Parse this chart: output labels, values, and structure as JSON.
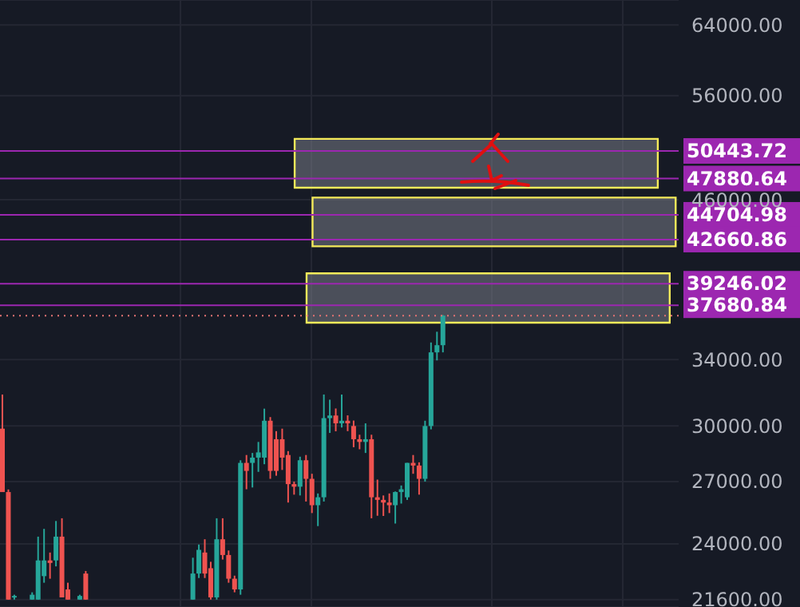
{
  "chart_data": {
    "type": "candlestick",
    "categories": [
      null,
      null,
      null,
      null,
      null,
      null,
      null,
      null,
      null,
      null,
      null,
      null,
      null,
      null,
      null,
      null,
      null,
      null,
      null,
      null,
      null,
      null,
      null,
      null,
      null,
      null,
      null,
      null,
      null,
      null,
      null,
      null,
      null,
      null,
      null,
      null,
      null,
      null,
      null,
      null,
      null,
      null,
      null,
      null,
      null,
      null,
      null,
      null,
      null,
      null,
      null,
      null,
      null,
      null,
      null,
      null,
      null,
      null,
      null,
      null,
      null,
      null,
      null,
      null,
      null,
      null,
      null,
      null,
      null,
      null,
      null,
      null,
      null,
      null,
      null,
      null,
      null,
      null,
      null,
      null,
      null,
      null,
      null,
      null,
      null,
      null,
      null,
      null,
      null,
      null,
      null,
      null,
      null,
      null,
      null,
      null,
      null,
      null,
      null,
      null,
      null,
      null,
      null,
      null,
      null,
      null,
      null,
      null,
      null,
      null,
      null,
      null,
      null,
      null
    ],
    "ohlc": [
      [
        29840,
        31830,
        26470,
        26470
      ],
      [
        26470,
        26600,
        21600,
        21600
      ],
      [
        21700,
        21800,
        21600,
        21750
      ],
      null,
      null,
      [
        21600,
        21900,
        21600,
        21800
      ],
      [
        21600,
        24330,
        21600,
        23260
      ],
      [
        22580,
        24690,
        22300,
        23260
      ],
      [
        23260,
        23610,
        22470,
        23150
      ],
      [
        23260,
        25060,
        23000,
        24330
      ],
      [
        24330,
        25190,
        21690,
        21690
      ],
      [
        22020,
        22300,
        21600,
        21600
      ],
      null,
      [
        21600,
        21800,
        21600,
        21750
      ],
      [
        22690,
        22800,
        21600,
        21600
      ],
      null,
      null,
      null,
      null,
      null,
      null,
      null,
      null,
      null,
      null,
      null,
      null,
      null,
      null,
      null,
      null,
      null,
      [
        21600,
        23380,
        21600,
        22690
      ],
      [
        22690,
        23970,
        22500,
        23730
      ],
      [
        23610,
        24210,
        22500,
        22690
      ],
      [
        22920,
        23200,
        21600,
        21690
      ],
      [
        21690,
        25190,
        21600,
        24210
      ],
      [
        24210,
        25190,
        23300,
        23500
      ],
      [
        23500,
        23700,
        22300,
        22470
      ],
      [
        22470,
        22600,
        21900,
        22020
      ],
      [
        22020,
        28110,
        21800,
        27970
      ],
      [
        27970,
        28390,
        26610,
        27550
      ],
      [
        27970,
        28500,
        26700,
        28250
      ],
      [
        28250,
        29100,
        27500,
        28530
      ],
      [
        28250,
        30990,
        27900,
        30290
      ],
      [
        30290,
        30500,
        27140,
        27550
      ],
      [
        29250,
        29700,
        27300,
        27550
      ],
      [
        29250,
        29840,
        27600,
        28250
      ],
      [
        28390,
        28600,
        25950,
        26870
      ],
      [
        26870,
        27000,
        26340,
        26740
      ],
      [
        26740,
        28300,
        26300,
        28110
      ],
      [
        28110,
        28390,
        26000,
        27140
      ],
      [
        27140,
        27400,
        25440,
        25820
      ],
      [
        25820,
        26400,
        24820,
        26210
      ],
      [
        26210,
        31830,
        26000,
        30440
      ],
      [
        30440,
        31520,
        29600,
        30590
      ],
      [
        30590,
        31000,
        29690,
        30140
      ],
      [
        30140,
        31830,
        29900,
        30290
      ],
      [
        30290,
        30600,
        29700,
        30140
      ],
      [
        29990,
        30300,
        28810,
        29250
      ],
      [
        29250,
        29500,
        28700,
        29100
      ],
      [
        29100,
        30140,
        28500,
        29250
      ],
      [
        29250,
        29500,
        25190,
        26210
      ],
      [
        26210,
        27100,
        25310,
        26080
      ],
      [
        26080,
        26300,
        25300,
        25950
      ],
      [
        25950,
        26400,
        25440,
        25820
      ],
      [
        25820,
        26500,
        24940,
        26470
      ],
      [
        26470,
        26800,
        25900,
        26610
      ],
      [
        26210,
        27970,
        26080,
        27970
      ],
      [
        27970,
        28390,
        27400,
        27830
      ],
      [
        27830,
        28000,
        26340,
        27140
      ],
      [
        27140,
        30290,
        27000,
        29990
      ],
      [
        29990,
        35120,
        29800,
        34470
      ],
      [
        34470,
        35840,
        33950,
        34940
      ],
      [
        34940,
        36990,
        34470,
        36950
      ],
      null,
      null,
      null,
      null,
      null,
      null,
      null,
      null,
      null,
      null,
      null,
      null,
      null,
      null,
      null,
      null,
      null,
      null,
      null,
      null,
      null,
      null,
      null,
      null,
      null,
      null,
      null,
      null,
      null,
      null,
      null,
      null,
      null,
      null,
      null,
      null,
      null,
      null,
      null
    ],
    "colors": [
      "#ef5350",
      "#ef5350",
      "#26a69a",
      null,
      null,
      "#26a69a",
      "#26a69a",
      "#26a69a",
      "#ef5350",
      "#26a69a",
      "#ef5350",
      "#ef5350",
      null,
      "#26a69a",
      "#ef5350",
      null,
      null,
      null,
      null,
      null,
      null,
      null,
      null,
      null,
      null,
      null,
      null,
      null,
      null,
      null,
      null,
      null,
      "#26a69a",
      "#26a69a",
      "#ef5350",
      "#ef5350",
      "#26a69a",
      "#ef5350",
      "#ef5350",
      "#ef5350",
      "#26a69a",
      "#ef5350",
      "#26a69a",
      "#26a69a",
      "#26a69a",
      "#ef5350",
      "#ef5350",
      "#ef5350",
      "#ef5350",
      "#ef5350",
      "#26a69a",
      "#ef5350",
      "#ef5350",
      "#26a69a",
      "#26a69a",
      "#26a69a",
      "#ef5350",
      "#26a69a",
      "#ef5350",
      "#ef5350",
      "#ef5350",
      "#26a69a",
      "#ef5350",
      "#ef5350",
      "#ef5350",
      "#ef5350",
      "#26a69a",
      "#26a69a",
      "#26a69a",
      "#ef5350",
      "#ef5350",
      "#26a69a",
      "#26a69a",
      "#26a69a",
      "#26a69a",
      null,
      null,
      null,
      null,
      null,
      null,
      null,
      null,
      null,
      null,
      null,
      null,
      null,
      null,
      null,
      null,
      null,
      null,
      null,
      null,
      null,
      null,
      null,
      null,
      null,
      null,
      null,
      null,
      null,
      null,
      null,
      null,
      null,
      null,
      null,
      null,
      null,
      null,
      null
    ],
    "ylim": [
      21300,
      67100
    ],
    "yticks": [
      {
        "value": 21600,
        "label": "21600.00"
      },
      {
        "value": 24000,
        "label": "24000.00"
      },
      {
        "value": 27000,
        "label": "27000.00"
      },
      {
        "value": 30000,
        "label": "30000.00"
      },
      {
        "value": 34000,
        "label": "34000.00"
      },
      {
        "value": 46000,
        "label": "46000.00"
      },
      {
        "value": 56000,
        "label": "56000.00"
      },
      {
        "value": 64000,
        "label": "64000.00"
      }
    ],
    "log": true,
    "grid": true,
    "ref_lines": [
      {
        "axis": "y",
        "value": 50443.72,
        "label": "50443.72",
        "color": "#9c27b0"
      },
      {
        "axis": "y",
        "value": 47880.64,
        "label": "47880.64",
        "color": "#9c27b0"
      },
      {
        "axis": "y",
        "value": 44704.98,
        "label": "44704.98",
        "color": "#9c27b0"
      },
      {
        "axis": "y",
        "value": 42660.86,
        "label": "42660.86",
        "color": "#9c27b0"
      },
      {
        "axis": "y",
        "value": 39246.02,
        "label": "39246.02",
        "color": "#9c27b0"
      },
      {
        "axis": "y",
        "value": 37680.84,
        "label": "37680.84",
        "color": "#9c27b0"
      },
      {
        "axis": "y",
        "value": 36950,
        "color": "#e57373",
        "line_style": "dotted"
      }
    ],
    "bands": [
      {
        "axis": "y",
        "from": 47060,
        "to": 51610,
        "color": "#f5eb5a"
      },
      {
        "axis": "y",
        "from": 42120,
        "to": 46190,
        "color": "#f5eb5a"
      },
      {
        "axis": "y",
        "from": 36460,
        "to": 40020,
        "color": "#f5eb5a"
      }
    ]
  }
}
